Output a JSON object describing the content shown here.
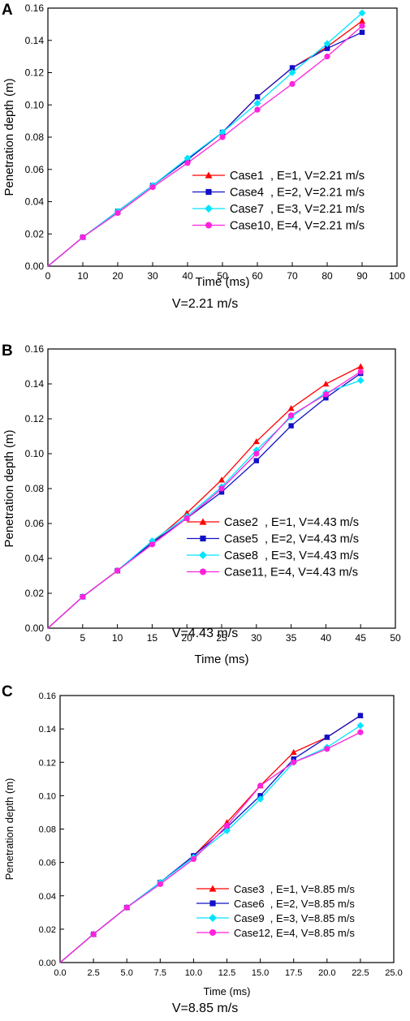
{
  "chart_data": [
    {
      "panel": "A",
      "caption": "V=2.21 m/s",
      "type": "line",
      "xlabel": "Time (ms)",
      "ylabel": "Penetration depth (m)",
      "xlim": [
        0,
        100
      ],
      "ylim": [
        0,
        0.16
      ],
      "xticks": [
        0,
        10,
        20,
        30,
        40,
        50,
        60,
        70,
        80,
        90,
        100
      ],
      "yticks": [
        0.0,
        0.02,
        0.04,
        0.06,
        0.08,
        0.1,
        0.12,
        0.14,
        0.16
      ],
      "xtick_labels": [
        "0",
        "10",
        "20",
        "30",
        "40",
        "50",
        "60",
        "70",
        "80",
        "90",
        "100"
      ],
      "ytick_labels": [
        "0.00",
        "0.02",
        "0.04",
        "0.06",
        "0.08",
        "0.10",
        "0.12",
        "0.14",
        "0.16"
      ],
      "x": [
        0,
        10,
        20,
        30,
        40,
        50,
        60,
        70,
        80,
        90
      ],
      "grid": false,
      "legend": "bottom-right",
      "series": [
        {
          "name": "Case1  , E=1, V=2.21 m/s",
          "color": "#ff0000",
          "marker": "triangle",
          "values": [
            0,
            0.018,
            0.034,
            0.05,
            0.066,
            0.083,
            0.105,
            0.123,
            0.136,
            0.152
          ]
        },
        {
          "name": "Case4  , E=2, V=2.21 m/s",
          "color": "#1010c8",
          "marker": "square",
          "values": [
            0,
            0.018,
            0.034,
            0.05,
            0.066,
            0.083,
            0.105,
            0.123,
            0.135,
            0.145
          ]
        },
        {
          "name": "Case7  , E=3, V=2.21 m/s",
          "color": "#00e5ff",
          "marker": "diamond",
          "values": [
            0,
            0.018,
            0.034,
            0.05,
            0.067,
            0.083,
            0.101,
            0.12,
            0.138,
            0.157
          ]
        },
        {
          "name": "Case10, E=4, V=2.21 m/s",
          "color": "#ff22dd",
          "marker": "circle",
          "values": [
            0,
            0.018,
            0.033,
            0.049,
            0.064,
            0.08,
            0.097,
            0.113,
            0.13,
            0.149
          ]
        }
      ]
    },
    {
      "panel": "B",
      "caption": "V=4.43 m/s",
      "type": "line",
      "xlabel": "Time (ms)",
      "ylabel": "Penetration depth (m)",
      "xlim": [
        0,
        50
      ],
      "ylim": [
        0,
        0.16
      ],
      "xticks": [
        0,
        5,
        10,
        15,
        20,
        25,
        30,
        35,
        40,
        45,
        50
      ],
      "yticks": [
        0.0,
        0.02,
        0.04,
        0.06,
        0.08,
        0.1,
        0.12,
        0.14,
        0.16
      ],
      "xtick_labels": [
        "0",
        "5",
        "10",
        "15",
        "20",
        "25",
        "30",
        "35",
        "40",
        "45",
        "50"
      ],
      "ytick_labels": [
        "0.00",
        "0.02",
        "0.04",
        "0.06",
        "0.08",
        "0.10",
        "0.12",
        "0.14",
        "0.16"
      ],
      "x": [
        0,
        5,
        10,
        15,
        20,
        25,
        30,
        35,
        40,
        45
      ],
      "grid": false,
      "legend": "bottom-right",
      "series": [
        {
          "name": "Case2  , E=1, V=4.43 m/s",
          "color": "#ff0000",
          "marker": "triangle",
          "values": [
            0,
            0.018,
            0.033,
            0.049,
            0.066,
            0.085,
            0.107,
            0.126,
            0.14,
            0.15
          ]
        },
        {
          "name": "Case5  , E=2, V=4.43 m/s",
          "color": "#1010c8",
          "marker": "square",
          "values": [
            0,
            0.018,
            0.033,
            0.049,
            0.063,
            0.078,
            0.096,
            0.116,
            0.132,
            0.146
          ]
        },
        {
          "name": "Case8  , E=3, V=4.43 m/s",
          "color": "#00e5ff",
          "marker": "diamond",
          "values": [
            0,
            0.018,
            0.033,
            0.05,
            0.064,
            0.081,
            0.102,
            0.121,
            0.135,
            0.142
          ]
        },
        {
          "name": "Case11, E=4, V=4.43 m/s",
          "color": "#ff22dd",
          "marker": "circle",
          "values": [
            0,
            0.018,
            0.033,
            0.048,
            0.063,
            0.08,
            0.1,
            0.122,
            0.134,
            0.147
          ]
        }
      ]
    },
    {
      "panel": "C",
      "caption": "V=8.85 m/s",
      "type": "line",
      "xlabel": "Time (ms)",
      "ylabel": "Penetration depth (m)",
      "xlim": [
        0,
        25
      ],
      "ylim": [
        0,
        0.16
      ],
      "xticks": [
        0,
        2.5,
        5,
        7.5,
        10,
        12.5,
        15,
        17.5,
        20,
        22.5,
        25
      ],
      "yticks": [
        0.0,
        0.02,
        0.04,
        0.06,
        0.08,
        0.1,
        0.12,
        0.14,
        0.16
      ],
      "xtick_labels": [
        "0.0",
        "2.5",
        "5.0",
        "7.5",
        "10.0",
        "12.5",
        "15.0",
        "17.5",
        "20.0",
        "22.5",
        "25.0"
      ],
      "ytick_labels": [
        "0.00",
        "0.02",
        "0.04",
        "0.06",
        "0.08",
        "0.10",
        "0.12",
        "0.14",
        "0.16"
      ],
      "x": [
        0,
        2.5,
        5,
        7.5,
        10,
        12.5,
        15,
        17.5,
        20,
        22.5
      ],
      "grid": false,
      "legend": "bottom-right",
      "series": [
        {
          "name": "Case3  , E=1, V=8.85 m/s",
          "color": "#ff0000",
          "marker": "triangle",
          "values": [
            0,
            0.017,
            0.033,
            0.048,
            0.064,
            0.084,
            0.106,
            0.126,
            0.135,
            0.148
          ]
        },
        {
          "name": "Case6  , E=2, V=8.85 m/s",
          "color": "#1010c8",
          "marker": "square",
          "values": [
            0,
            0.017,
            0.033,
            0.048,
            0.064,
            0.081,
            0.1,
            0.122,
            0.135,
            0.148
          ]
        },
        {
          "name": "Case9  , E=3, V=8.85 m/s",
          "color": "#00e5ff",
          "marker": "diamond",
          "values": [
            0,
            0.017,
            0.033,
            0.048,
            0.063,
            0.079,
            0.098,
            0.12,
            0.129,
            0.142
          ]
        },
        {
          "name": "Case12, E=4, V=8.85 m/s",
          "color": "#ff22dd",
          "marker": "circle",
          "values": [
            0,
            0.017,
            0.033,
            0.047,
            0.062,
            0.082,
            0.106,
            0.12,
            0.128,
            0.138
          ]
        }
      ]
    }
  ]
}
